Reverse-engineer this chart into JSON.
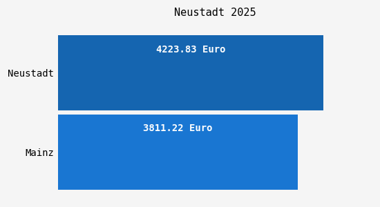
{
  "title": "Neustadt 2025",
  "categories": [
    "Neustadt",
    "Mainz"
  ],
  "values": [
    4223.83,
    3811.22
  ],
  "bar_colors": [
    "#1565b0",
    "#1976d2"
  ],
  "value_labels": [
    "4223.83 Euro",
    "3811.22 Euro"
  ],
  "background_color": "#f5f5f5",
  "title_fontsize": 11,
  "label_fontsize": 10,
  "value_fontsize": 10,
  "bar_height": 0.95,
  "xlim": [
    0,
    5000
  ]
}
